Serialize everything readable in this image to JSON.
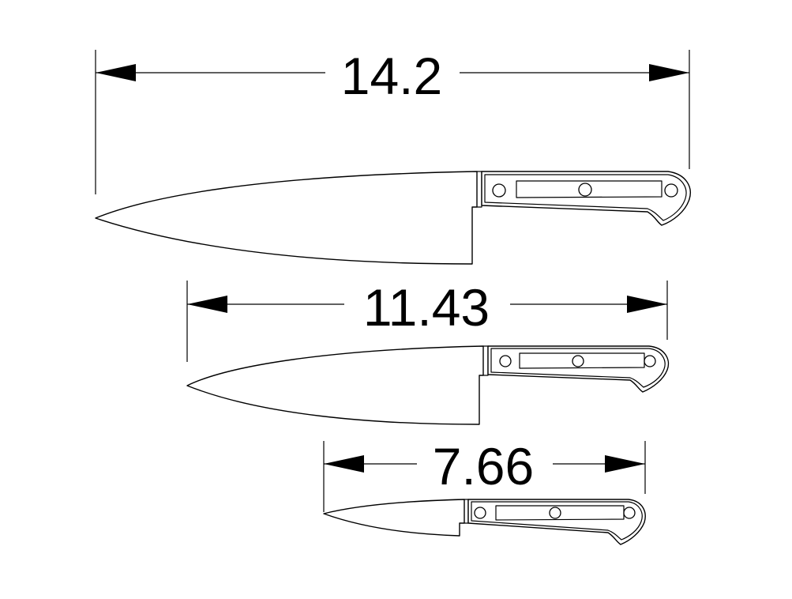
{
  "dimensions": {
    "large": "14.2",
    "medium": "11.43",
    "small": "7.66"
  },
  "colors": {
    "line": "#000000",
    "background": "#ffffff"
  }
}
